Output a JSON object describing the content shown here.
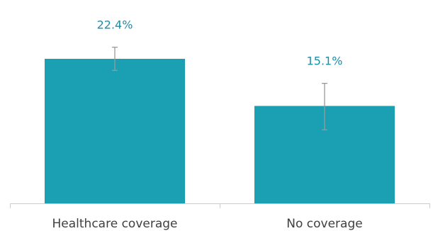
{
  "chart_data": {
    "type": "bar",
    "categories": [
      "Healthcare coverage",
      "No coverage"
    ],
    "values": [
      22.4,
      15.1
    ],
    "data_labels": [
      "22.4%",
      "15.1%"
    ],
    "error_bars": [
      {
        "low": 20.6,
        "high": 24.2
      },
      {
        "low": 11.4,
        "high": 18.6
      }
    ],
    "title": "",
    "xlabel": "",
    "ylabel": "",
    "ylim": [
      0,
      28
    ],
    "grid": false,
    "legend": "none"
  },
  "colors": {
    "bar": "#1b9fb3",
    "label": "#1b8fa8",
    "error_bar": "#999999",
    "axis": "#cccccc",
    "tick_text": "#404040"
  }
}
